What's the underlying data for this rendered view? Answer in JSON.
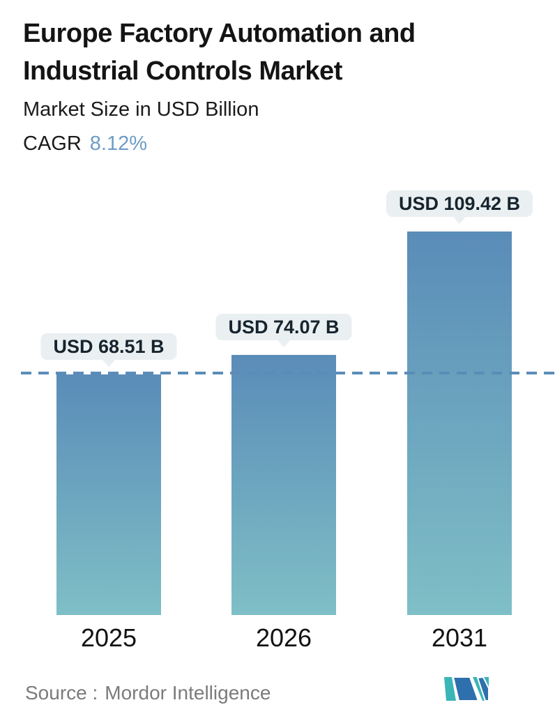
{
  "header": {
    "title": "Europe Factory Automation and Industrial Controls Market",
    "subtitle": "Market Size in USD Billion",
    "cagr_label": "CAGR",
    "cagr_value": "8.12%"
  },
  "chart_data": {
    "type": "bar",
    "title": "Europe Factory Automation and Industrial Controls Market",
    "subtitle": "Market Size in USD Billion",
    "unit": "USD Billion",
    "categories": [
      "2025",
      "2026",
      "2031"
    ],
    "values": [
      68.51,
      74.07,
      109.42
    ],
    "labels": [
      "USD 68.51 B",
      "USD 74.07 B",
      "USD 109.42 B"
    ],
    "cagr": "8.12%",
    "reference_line_value": 68.51,
    "grid": false,
    "legend": false,
    "ylim": [
      0,
      120
    ]
  },
  "footer": {
    "source_label": "Source :",
    "source_value": "Mordor Intelligence",
    "logo": "mordor-intelligence-logo"
  },
  "colors": {
    "title_text": "#141414",
    "cagr_value": "#6d9cc6",
    "bar_gradient_top": "#5a8cb8",
    "bar_gradient_bottom": "#7fbfc6",
    "dashed_line": "#5b8cb8",
    "bubble_bg": "#eaeff1",
    "bubble_text": "#16242e",
    "source_text": "#7b7b7b",
    "logo_teal": "#3ab5b8",
    "logo_blue": "#2e6fae"
  }
}
